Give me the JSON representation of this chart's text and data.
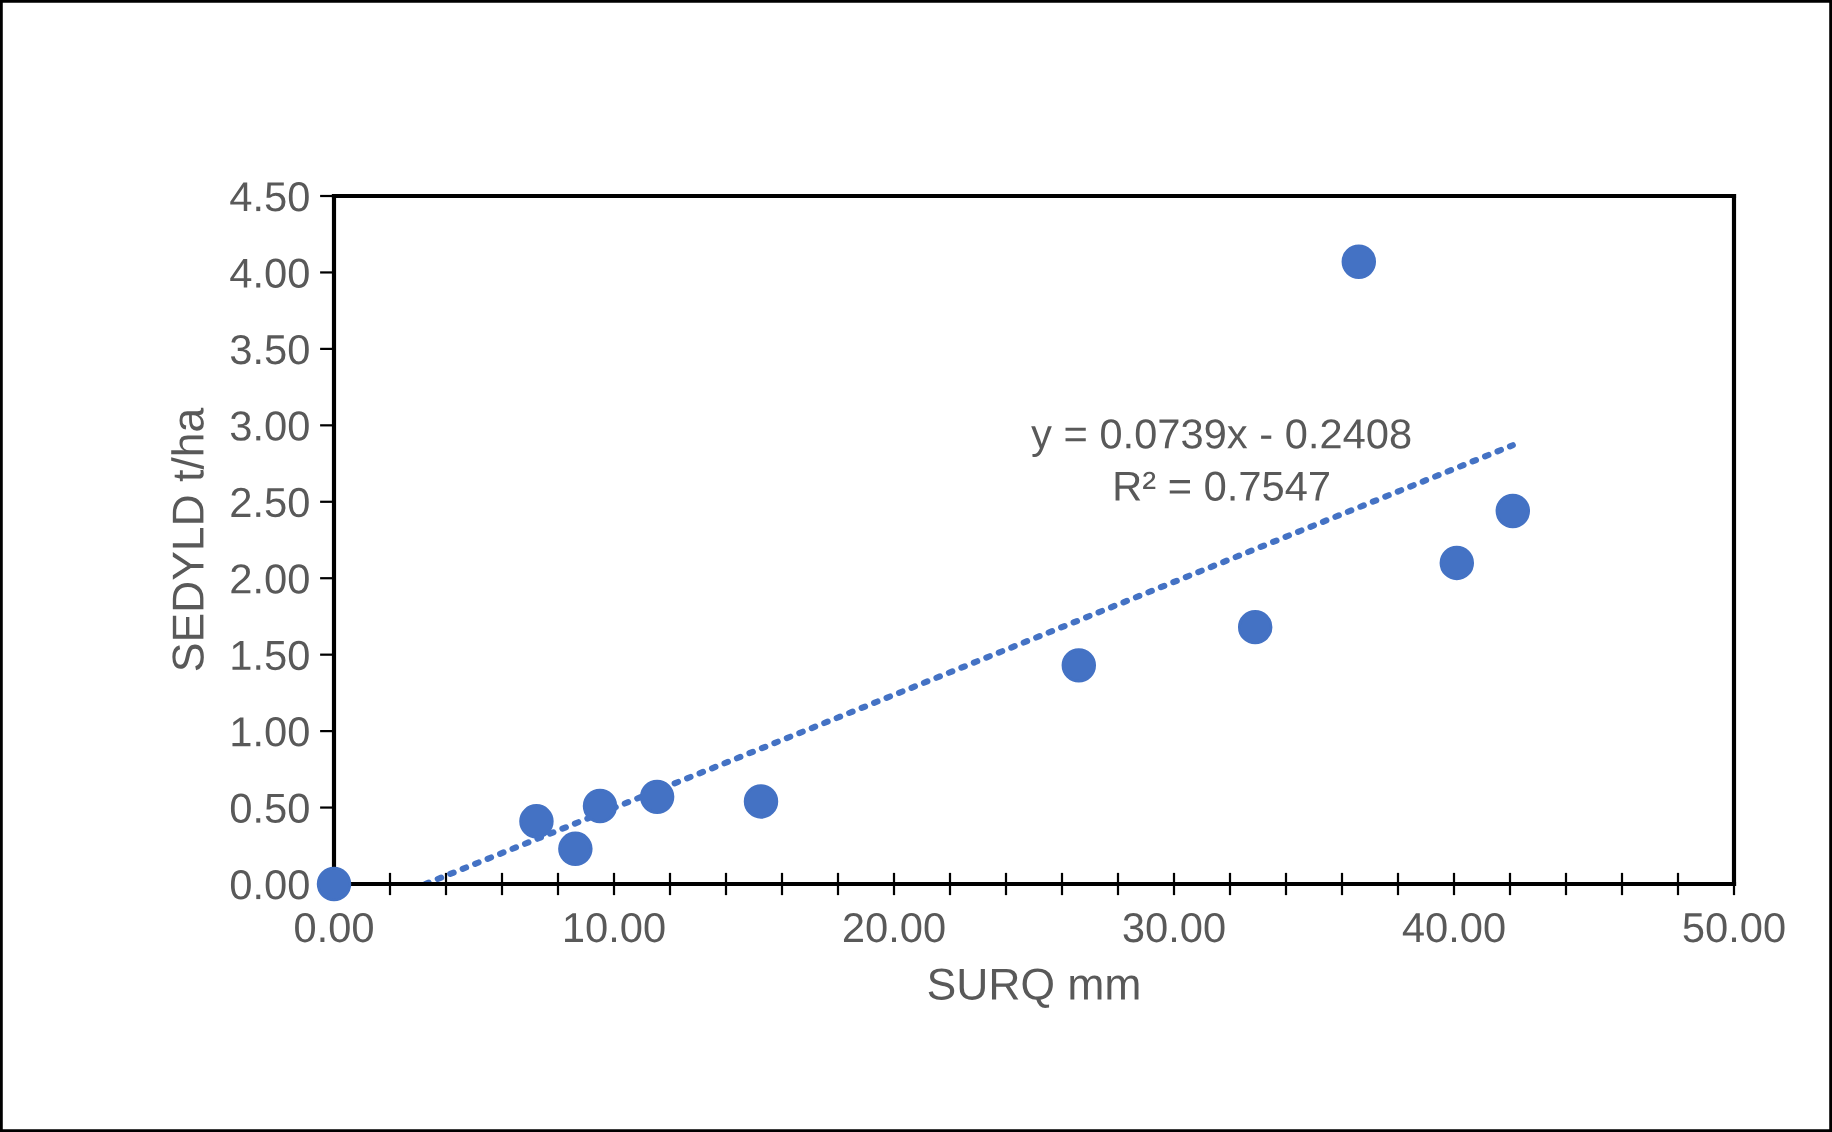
{
  "chart_data": {
    "type": "scatter",
    "xlabel": "SURQ mm",
    "ylabel": "SEDYLD t/ha",
    "series": [
      {
        "color": "#4472c4",
        "marker": "circle",
        "x": [
          0.0,
          7.23,
          8.62,
          9.5,
          11.54,
          15.25,
          26.6,
          32.9,
          36.6,
          40.1,
          42.1
        ],
        "values": [
          0.0,
          0.41,
          0.23,
          0.51,
          0.57,
          0.54,
          1.43,
          1.68,
          4.07,
          2.1,
          2.44
        ]
      },
      {
        "type": "line",
        "color": "#4472c4",
        "line_style": "dotted",
        "marker": "none",
        "x": [
          3.26,
          42.1
        ],
        "values": [
          0.0,
          2.87
        ]
      }
    ],
    "annotations": [
      "y = 0.0739x - 0.2408",
      "R² = 0.7547"
    ],
    "xlim": [
      0,
      50
    ],
    "xticks": [
      {
        "value": 0,
        "label": "0.00"
      },
      {
        "value": 2,
        "label": null
      },
      {
        "value": 4,
        "label": null
      },
      {
        "value": 6,
        "label": null
      },
      {
        "value": 8,
        "label": null
      },
      {
        "value": 10,
        "label": "10.00"
      },
      {
        "value": 12,
        "label": null
      },
      {
        "value": 14,
        "label": null
      },
      {
        "value": 16,
        "label": null
      },
      {
        "value": 18,
        "label": null
      },
      {
        "value": 20,
        "label": "20.00"
      },
      {
        "value": 22,
        "label": null
      },
      {
        "value": 24,
        "label": null
      },
      {
        "value": 26,
        "label": null
      },
      {
        "value": 28,
        "label": null
      },
      {
        "value": 30,
        "label": "30.00"
      },
      {
        "value": 32,
        "label": null
      },
      {
        "value": 34,
        "label": null
      },
      {
        "value": 36,
        "label": null
      },
      {
        "value": 38,
        "label": null
      },
      {
        "value": 40,
        "label": "40.00"
      },
      {
        "value": 42,
        "label": null
      },
      {
        "value": 44,
        "label": null
      },
      {
        "value": 46,
        "label": null
      },
      {
        "value": 48,
        "label": null
      },
      {
        "value": 50,
        "label": "50.00"
      }
    ],
    "ylim": [
      0,
      4.5
    ],
    "yticks": [
      {
        "value": 0,
        "label": "0.00"
      },
      {
        "value": 0.5,
        "label": "0.50"
      },
      {
        "value": 1,
        "label": "1.00"
      },
      {
        "value": 1.5,
        "label": "1.50"
      },
      {
        "value": 2,
        "label": "2.00"
      },
      {
        "value": 2.5,
        "label": "2.50"
      },
      {
        "value": 3,
        "label": "3.00"
      },
      {
        "value": 3.5,
        "label": "3.50"
      },
      {
        "value": 4,
        "label": "4.00"
      },
      {
        "value": 4.5,
        "label": "4.50"
      }
    ],
    "grid": false,
    "legend": false
  }
}
